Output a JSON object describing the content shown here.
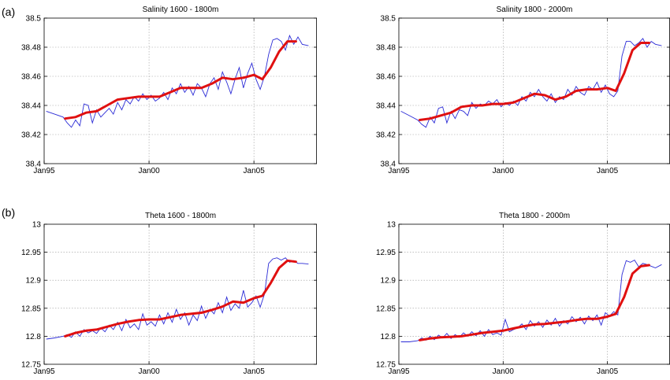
{
  "panel_labels": {
    "a": "(a)",
    "b": "(b)"
  },
  "chart_data": [
    {
      "type": "line",
      "title": "Salinity 1600 - 1800m",
      "x_ticks": [
        "Jan95",
        "Jan00",
        "Jan05"
      ],
      "y_ticks": [
        "38.4",
        "38.42",
        "38.44",
        "38.46",
        "38.48",
        "38.5"
      ],
      "xlim": [
        1995.0,
        2008.0
      ],
      "ylim": [
        38.4,
        38.5
      ],
      "grid": true,
      "series": [
        {
          "role": "raw",
          "color": "#2b2bd6",
          "x": [
            1995.1,
            1995.5,
            1995.9,
            1996.1,
            1996.3,
            1996.5,
            1996.7,
            1996.9,
            1997.1,
            1997.3,
            1997.5,
            1997.7,
            1997.9,
            1998.1,
            1998.3,
            1998.5,
            1998.7,
            1998.9,
            1999.1,
            1999.3,
            1999.5,
            1999.7,
            1999.9,
            2000.1,
            2000.3,
            2000.5,
            2000.7,
            2000.9,
            2001.1,
            2001.3,
            2001.5,
            2001.7,
            2001.9,
            2002.1,
            2002.3,
            2002.5,
            2002.7,
            2002.9,
            2003.1,
            2003.3,
            2003.5,
            2003.7,
            2003.9,
            2004.1,
            2004.3,
            2004.5,
            2004.7,
            2004.9,
            2005.1,
            2005.3,
            2005.5,
            2005.7,
            2005.9,
            2006.1,
            2006.3,
            2006.5,
            2006.7,
            2006.9,
            2007.1,
            2007.3,
            2007.6
          ],
          "y": [
            38.436,
            38.434,
            38.432,
            38.428,
            38.425,
            38.43,
            38.426,
            38.441,
            38.44,
            38.428,
            38.437,
            38.432,
            38.435,
            38.438,
            38.434,
            38.442,
            38.437,
            38.444,
            38.441,
            38.446,
            38.443,
            38.448,
            38.444,
            38.447,
            38.443,
            38.445,
            38.449,
            38.444,
            38.452,
            38.448,
            38.455,
            38.449,
            38.453,
            38.447,
            38.455,
            38.452,
            38.446,
            38.455,
            38.459,
            38.451,
            38.463,
            38.456,
            38.448,
            38.458,
            38.466,
            38.452,
            38.462,
            38.469,
            38.458,
            38.451,
            38.46,
            38.475,
            38.485,
            38.486,
            38.484,
            38.478,
            38.488,
            38.482,
            38.487,
            38.482,
            38.481
          ]
        },
        {
          "role": "smooth",
          "color": "#e01010",
          "x": [
            1996.0,
            1996.5,
            1997.0,
            1997.5,
            1998.0,
            1998.5,
            1999.0,
            1999.5,
            2000.0,
            2000.5,
            2001.0,
            2001.5,
            2002.0,
            2002.5,
            2003.0,
            2003.5,
            2004.0,
            2004.5,
            2005.0,
            2005.4,
            2005.8,
            2006.2,
            2006.6,
            2007.0
          ],
          "y": [
            38.431,
            38.432,
            38.435,
            38.436,
            38.44,
            38.444,
            38.445,
            38.446,
            38.446,
            38.446,
            38.449,
            38.452,
            38.452,
            38.452,
            38.455,
            38.459,
            38.458,
            38.459,
            38.461,
            38.458,
            38.466,
            38.477,
            38.484,
            38.484
          ]
        }
      ]
    },
    {
      "type": "line",
      "title": "Salinity 1800 - 2000m",
      "x_ticks": [
        "Jan95",
        "Jan00",
        "Jan05"
      ],
      "y_ticks": [
        "38.4",
        "38.42",
        "38.44",
        "38.46",
        "38.48",
        "38.5"
      ],
      "xlim": [
        1995.0,
        2008.0
      ],
      "ylim": [
        38.4,
        38.5
      ],
      "grid": true,
      "series": [
        {
          "role": "raw",
          "color": "#2b2bd6",
          "x": [
            1995.1,
            1995.5,
            1995.9,
            1996.1,
            1996.3,
            1996.5,
            1996.7,
            1996.9,
            1997.1,
            1997.3,
            1997.5,
            1997.7,
            1997.9,
            1998.1,
            1998.3,
            1998.5,
            1998.7,
            1998.9,
            1999.1,
            1999.3,
            1999.5,
            1999.7,
            1999.9,
            2000.1,
            2000.3,
            2000.5,
            2000.7,
            2000.9,
            2001.1,
            2001.3,
            2001.5,
            2001.7,
            2001.9,
            2002.1,
            2002.3,
            2002.5,
            2002.7,
            2002.9,
            2003.1,
            2003.3,
            2003.5,
            2003.7,
            2003.9,
            2004.1,
            2004.3,
            2004.5,
            2004.7,
            2004.9,
            2005.1,
            2005.3,
            2005.5,
            2005.7,
            2005.9,
            2006.1,
            2006.3,
            2006.5,
            2006.7,
            2006.9,
            2007.1,
            2007.3,
            2007.6
          ],
          "y": [
            38.436,
            38.433,
            38.43,
            38.427,
            38.425,
            38.432,
            38.428,
            38.438,
            38.439,
            38.428,
            38.436,
            38.431,
            38.437,
            38.436,
            38.433,
            38.442,
            38.438,
            38.441,
            38.44,
            38.443,
            38.441,
            38.444,
            38.439,
            38.442,
            38.44,
            38.443,
            38.44,
            38.446,
            38.443,
            38.449,
            38.446,
            38.451,
            38.446,
            38.443,
            38.448,
            38.442,
            38.446,
            38.444,
            38.451,
            38.447,
            38.453,
            38.449,
            38.447,
            38.453,
            38.451,
            38.456,
            38.449,
            38.454,
            38.448,
            38.446,
            38.45,
            38.474,
            38.484,
            38.484,
            38.481,
            38.483,
            38.486,
            38.48,
            38.484,
            38.482,
            38.481
          ]
        },
        {
          "role": "smooth",
          "color": "#e01010",
          "x": [
            1996.0,
            1996.5,
            1997.0,
            1997.5,
            1998.0,
            1998.5,
            1999.0,
            1999.5,
            2000.0,
            2000.5,
            2001.0,
            2001.5,
            2002.0,
            2002.5,
            2003.0,
            2003.5,
            2004.0,
            2004.5,
            2005.0,
            2005.4,
            2005.8,
            2006.2,
            2006.6,
            2007.0
          ],
          "y": [
            38.43,
            38.431,
            38.433,
            38.435,
            38.439,
            38.44,
            38.44,
            38.441,
            38.441,
            38.442,
            38.445,
            38.448,
            38.447,
            38.444,
            38.446,
            38.45,
            38.451,
            38.451,
            38.452,
            38.45,
            38.462,
            38.478,
            38.483,
            38.483
          ]
        }
      ]
    },
    {
      "type": "line",
      "title": "Theta 1600 - 1800m",
      "x_ticks": [
        "Jan95",
        "Jan00",
        "Jan05"
      ],
      "y_ticks": [
        "12.75",
        "12.8",
        "12.85",
        "12.9",
        "12.95",
        "13"
      ],
      "xlim": [
        1995.0,
        2008.0
      ],
      "ylim": [
        12.75,
        13.0
      ],
      "grid": true,
      "series": [
        {
          "role": "raw",
          "color": "#2b2bd6",
          "x": [
            1995.1,
            1995.5,
            1995.9,
            1996.1,
            1996.3,
            1996.5,
            1996.7,
            1996.9,
            1997.1,
            1997.3,
            1997.5,
            1997.7,
            1997.9,
            1998.1,
            1998.3,
            1998.5,
            1998.7,
            1998.9,
            1999.1,
            1999.3,
            1999.5,
            1999.7,
            1999.9,
            2000.1,
            2000.3,
            2000.5,
            2000.7,
            2000.9,
            2001.1,
            2001.3,
            2001.5,
            2001.7,
            2001.9,
            2002.1,
            2002.3,
            2002.5,
            2002.7,
            2002.9,
            2003.1,
            2003.3,
            2003.5,
            2003.7,
            2003.9,
            2004.1,
            2004.3,
            2004.5,
            2004.7,
            2004.9,
            2005.1,
            2005.3,
            2005.5,
            2005.7,
            2005.9,
            2006.1,
            2006.3,
            2006.5,
            2006.7,
            2006.9,
            2007.1,
            2007.3,
            2007.6
          ],
          "y": [
            12.795,
            12.797,
            12.8,
            12.803,
            12.798,
            12.808,
            12.8,
            12.812,
            12.806,
            12.81,
            12.805,
            12.815,
            12.808,
            12.82,
            12.812,
            12.825,
            12.81,
            12.83,
            12.815,
            12.822,
            12.812,
            12.84,
            12.82,
            12.826,
            12.818,
            12.838,
            12.822,
            12.842,
            12.825,
            12.848,
            12.83,
            12.842,
            12.82,
            12.838,
            12.828,
            12.854,
            12.832,
            12.848,
            12.84,
            12.86,
            12.842,
            12.87,
            12.846,
            12.858,
            12.85,
            12.882,
            12.852,
            12.86,
            12.872,
            12.852,
            12.875,
            12.93,
            12.938,
            12.94,
            12.936,
            12.94,
            12.932,
            12.935,
            12.93,
            12.93,
            12.929
          ]
        },
        {
          "role": "smooth",
          "color": "#e01010",
          "x": [
            1996.0,
            1996.5,
            1997.0,
            1997.5,
            1998.0,
            1998.5,
            1999.0,
            1999.5,
            2000.0,
            2000.5,
            2001.0,
            2001.5,
            2002.0,
            2002.5,
            2003.0,
            2003.5,
            2004.0,
            2004.5,
            2005.0,
            2005.4,
            2005.8,
            2006.2,
            2006.6,
            2007.0
          ],
          "y": [
            12.8,
            12.806,
            12.81,
            12.812,
            12.817,
            12.822,
            12.826,
            12.829,
            12.83,
            12.83,
            12.834,
            12.838,
            12.84,
            12.842,
            12.847,
            12.853,
            12.862,
            12.86,
            12.868,
            12.872,
            12.895,
            12.922,
            12.935,
            12.933
          ]
        }
      ]
    },
    {
      "type": "line",
      "title": "Theta 1800 - 2000m",
      "x_ticks": [
        "Jan95",
        "Jan00",
        "Jan05"
      ],
      "y_ticks": [
        "12.75",
        "12.8",
        "12.85",
        "12.9",
        "12.95",
        "13"
      ],
      "xlim": [
        1995.0,
        2008.0
      ],
      "ylim": [
        12.75,
        13.0
      ],
      "grid": true,
      "series": [
        {
          "role": "raw",
          "color": "#2b2bd6",
          "x": [
            1995.1,
            1995.5,
            1995.9,
            1996.1,
            1996.3,
            1996.5,
            1996.7,
            1996.9,
            1997.1,
            1997.3,
            1997.5,
            1997.7,
            1997.9,
            1998.1,
            1998.3,
            1998.5,
            1998.7,
            1998.9,
            1999.1,
            1999.3,
            1999.5,
            1999.7,
            1999.9,
            2000.1,
            2000.3,
            2000.5,
            2000.7,
            2000.9,
            2001.1,
            2001.3,
            2001.5,
            2001.7,
            2001.9,
            2002.1,
            2002.3,
            2002.5,
            2002.7,
            2002.9,
            2003.1,
            2003.3,
            2003.5,
            2003.7,
            2003.9,
            2004.1,
            2004.3,
            2004.5,
            2004.7,
            2004.9,
            2005.1,
            2005.3,
            2005.5,
            2005.7,
            2005.9,
            2006.1,
            2006.3,
            2006.5,
            2006.7,
            2006.9,
            2007.1,
            2007.3,
            2007.6
          ],
          "y": [
            12.79,
            12.79,
            12.792,
            12.797,
            12.793,
            12.8,
            12.794,
            12.802,
            12.797,
            12.805,
            12.796,
            12.803,
            12.798,
            12.806,
            12.8,
            12.808,
            12.801,
            12.81,
            12.8,
            12.812,
            12.803,
            12.806,
            12.802,
            12.83,
            12.808,
            12.812,
            12.815,
            12.822,
            12.812,
            12.828,
            12.818,
            12.826,
            12.816,
            12.829,
            12.82,
            12.832,
            12.818,
            12.828,
            12.822,
            12.835,
            12.826,
            12.834,
            12.822,
            12.836,
            12.828,
            12.838,
            12.82,
            12.842,
            12.836,
            12.844,
            12.838,
            12.91,
            12.935,
            12.932,
            12.936,
            12.924,
            12.93,
            12.928,
            12.925,
            12.922,
            12.928
          ]
        },
        {
          "role": "smooth",
          "color": "#e01010",
          "x": [
            1996.0,
            1996.5,
            1997.0,
            1997.5,
            1998.0,
            1998.5,
            1999.0,
            1999.5,
            2000.0,
            2000.5,
            2001.0,
            2001.5,
            2002.0,
            2002.5,
            2003.0,
            2003.5,
            2004.0,
            2004.5,
            2005.0,
            2005.4,
            2005.8,
            2006.2,
            2006.6,
            2007.0
          ],
          "y": [
            12.793,
            12.796,
            12.798,
            12.799,
            12.8,
            12.803,
            12.806,
            12.808,
            12.81,
            12.814,
            12.818,
            12.821,
            12.822,
            12.824,
            12.826,
            12.829,
            12.831,
            12.831,
            12.835,
            12.84,
            12.87,
            12.912,
            12.925,
            12.927
          ]
        }
      ]
    }
  ]
}
